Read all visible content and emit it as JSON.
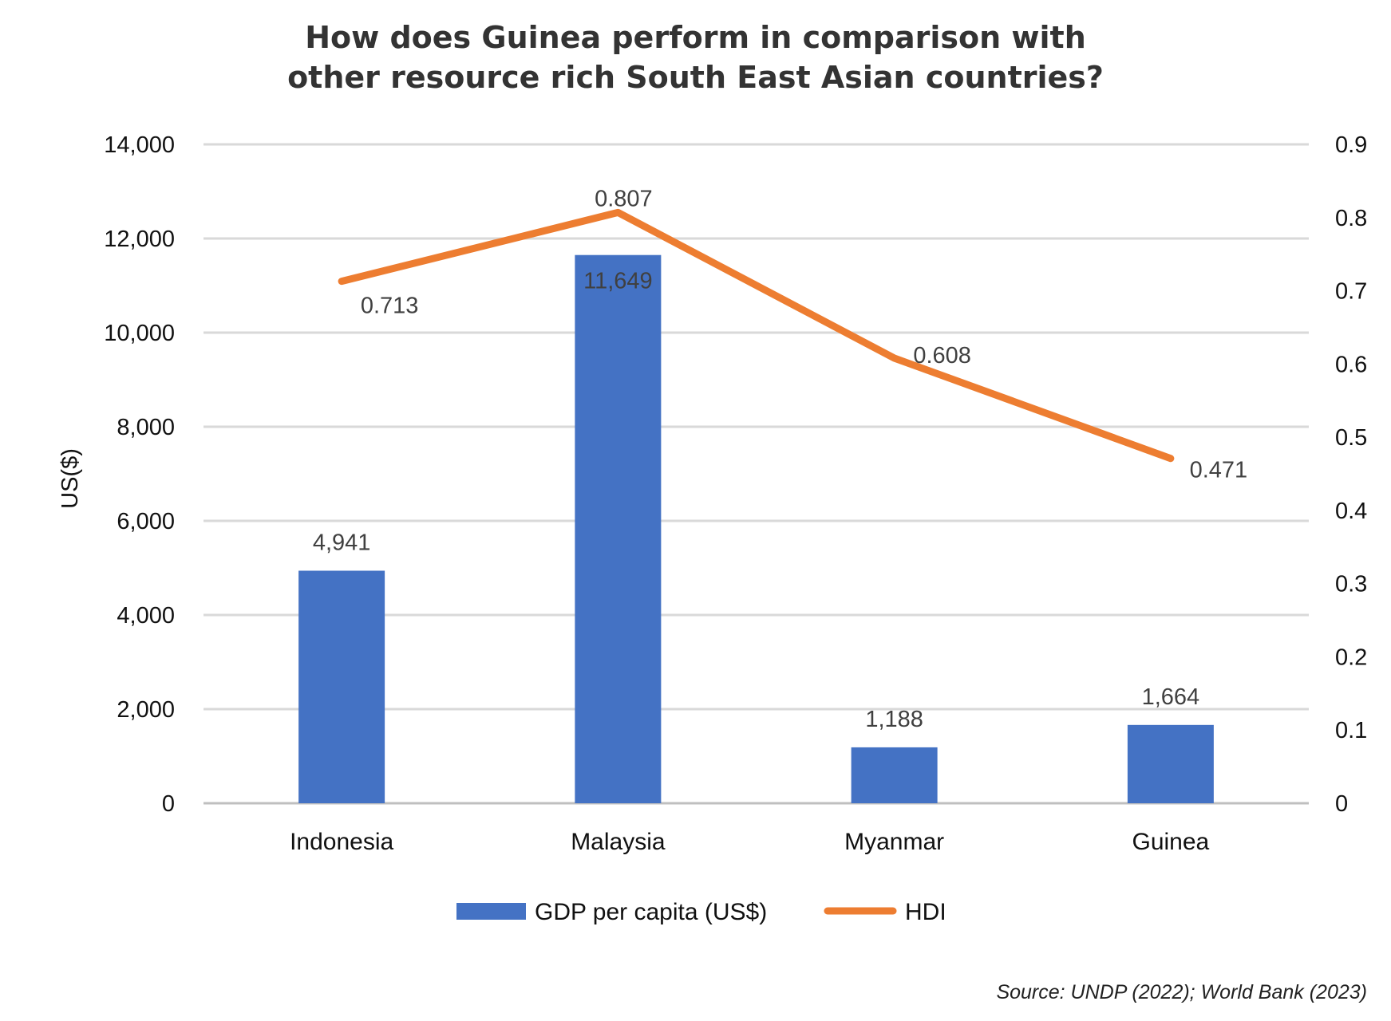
{
  "chart_data": {
    "type": "bar+line",
    "title_lines": [
      "How does Guinea perform in comparison with",
      "other resource rich South East Asian countries?"
    ],
    "categories": [
      "Indonesia",
      "Malaysia",
      "Myanmar",
      "Guinea"
    ],
    "series": [
      {
        "name": "GDP per capita (US$)",
        "type": "bar",
        "axis": "left",
        "color": "#4472C4",
        "values": [
          4941,
          11649,
          1188,
          1664
        ],
        "labels": [
          "4,941",
          "11,649",
          "1,188",
          "1,664"
        ]
      },
      {
        "name": "HDI",
        "type": "line",
        "axis": "right",
        "color": "#ED7D31",
        "values": [
          0.713,
          0.807,
          0.608,
          0.471
        ],
        "labels": [
          "0.713",
          "0.807",
          "0.608",
          "0.471"
        ]
      }
    ],
    "ylabel": "US($)",
    "ylim": [
      0,
      14000
    ],
    "yticks": [
      "0",
      "2,000",
      "4,000",
      "6,000",
      "8,000",
      "10,000",
      "12,000",
      "14,000"
    ],
    "y2lim": [
      0,
      0.9
    ],
    "y2ticks": [
      "0",
      "0.1",
      "0.2",
      "0.3",
      "0.4",
      "0.5",
      "0.6",
      "0.7",
      "0.8",
      "0.9"
    ],
    "grid": true,
    "legend": "bottom",
    "source": "Source: UNDP (2022); World Bank (2023)"
  }
}
